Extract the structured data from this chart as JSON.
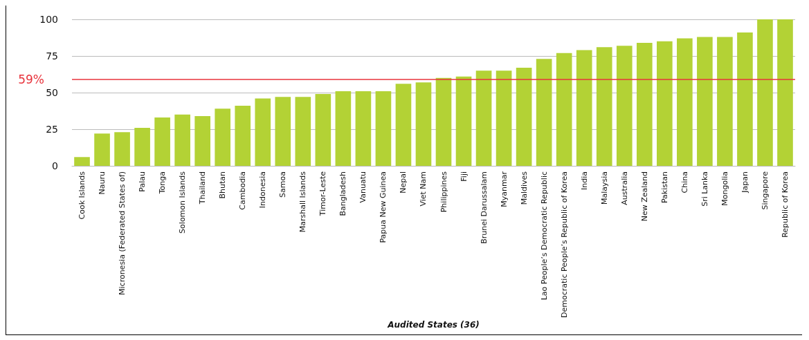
{
  "chart_data": {
    "type": "bar",
    "xlabel": "Audited States (36)",
    "categories": [
      "Cook Islands",
      "Nauru",
      "Micronesia (Federated States of)",
      "Palau",
      "Tonga",
      "Solomon Islands",
      "Thailand",
      "Bhutan",
      "Cambodia",
      "Indonesia",
      "Samoa",
      "Marshall Islands",
      "Timor-Leste",
      "Bangladesh",
      "Vanuatu",
      "Papua New Guinea",
      "Nepal",
      "Viet Nam",
      "Philippines",
      "Fiji",
      "Brunei Darussalam",
      "Myanmar",
      "Maldives",
      "Lao People’s Democratic Republic",
      "Democratic People’s Republic of Korea",
      "India",
      "Malaysia",
      "Australia",
      "New Zealand",
      "Pakistan",
      "China",
      "Sri Lanka",
      "Mongolia",
      "Japan",
      "Singapore",
      "Republic of Korea"
    ],
    "values": [
      6,
      22,
      23,
      26,
      33,
      35,
      34,
      39,
      41,
      46,
      47,
      47,
      49,
      51,
      51,
      51,
      56,
      57,
      60,
      61,
      65,
      65,
      67,
      73,
      77,
      79,
      81,
      82,
      84,
      85,
      87,
      88,
      88,
      91,
      100,
      100
    ],
    "color": "#b3d235",
    "ylim": [
      0,
      100
    ],
    "yticks": [
      0,
      25,
      50,
      75,
      100
    ],
    "grid": "y",
    "ref_lines": [
      {
        "axis": "y",
        "value": 59,
        "label": "59%",
        "color": "#e8333c"
      }
    ]
  }
}
